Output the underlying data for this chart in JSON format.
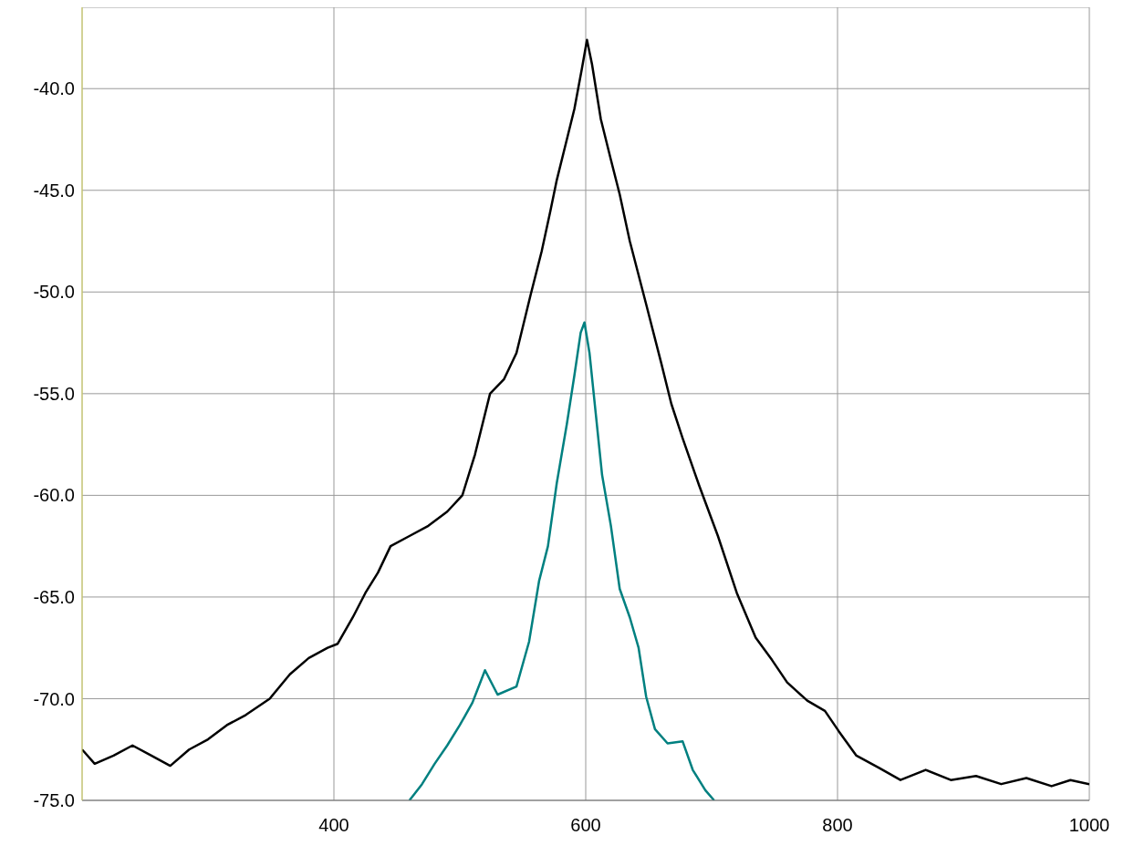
{
  "chart_data": {
    "type": "line",
    "xlim": [
      200,
      1000
    ],
    "ylim": [
      -75,
      -36
    ],
    "xticks": [
      400,
      600,
      800,
      1000
    ],
    "yticks": [
      {
        "value": -75,
        "label": "-75.0"
      },
      {
        "value": -70,
        "label": "-70.0"
      },
      {
        "value": -65,
        "label": "-65.0"
      },
      {
        "value": -60,
        "label": "-60.0"
      },
      {
        "value": -55,
        "label": "-55.0"
      },
      {
        "value": -50,
        "label": "-50.0"
      },
      {
        "value": -45,
        "label": "-45.0"
      },
      {
        "value": -40,
        "label": "-40.0"
      }
    ],
    "grid": true,
    "marker": "none",
    "line_style": "solid",
    "series": [
      {
        "color": "#000000",
        "x": [
          200,
          210,
          225,
          240,
          255,
          270,
          285,
          300,
          315,
          330,
          349,
          365,
          380,
          395,
          403,
          415,
          425,
          435,
          445,
          460,
          475,
          490,
          502,
          512,
          524,
          535,
          545,
          556,
          565,
          572,
          577,
          585,
          591,
          597,
          601,
          605,
          612,
          620,
          627,
          635,
          648,
          660,
          668,
          677,
          690,
          705,
          720,
          735,
          748,
          760,
          776,
          790,
          801,
          815,
          833,
          850,
          870,
          890,
          910,
          930,
          950,
          970,
          985,
          1000
        ],
        "values": [
          -72.5,
          -73.2,
          -72.8,
          -72.3,
          -72.8,
          -73.3,
          -72.5,
          -72.0,
          -71.3,
          -70.8,
          -70.0,
          -68.8,
          -68.0,
          -67.5,
          -67.3,
          -66.0,
          -64.8,
          -63.8,
          -62.5,
          -62.0,
          -61.5,
          -60.8,
          -60.0,
          -58.0,
          -55.0,
          -54.3,
          -53.0,
          -50.2,
          -48.0,
          -46.0,
          -44.5,
          -42.5,
          -41.0,
          -39.0,
          -37.6,
          -38.8,
          -41.5,
          -43.5,
          -45.2,
          -47.5,
          -50.6,
          -53.5,
          -55.5,
          -57.2,
          -59.5,
          -62.0,
          -64.8,
          -67.0,
          -68.1,
          -69.2,
          -70.1,
          -70.6,
          -71.6,
          -72.8,
          -73.4,
          -74.0,
          -73.5,
          -74.0,
          -73.8,
          -74.2,
          -73.9,
          -74.3,
          -74.0,
          -74.2
        ]
      },
      {
        "color": "#008080",
        "x": [
          460,
          470,
          480,
          490,
          500,
          510,
          520,
          530,
          545,
          555,
          563,
          570,
          577,
          585,
          591,
          596,
          599,
          603,
          608,
          613,
          620,
          627,
          635,
          642,
          648,
          655,
          665,
          677,
          685,
          695,
          702
        ],
        "values": [
          -75,
          -74.2,
          -73.2,
          -72.3,
          -71.3,
          -70.2,
          -68.6,
          -69.8,
          -69.4,
          -67.2,
          -64.2,
          -62.5,
          -59.4,
          -56.5,
          -54.1,
          -52.0,
          -51.5,
          -53.0,
          -56.0,
          -59.0,
          -61.5,
          -64.6,
          -66.0,
          -67.5,
          -69.9,
          -71.5,
          -72.2,
          -72.1,
          -73.5,
          -74.5,
          -75
        ]
      }
    ]
  }
}
